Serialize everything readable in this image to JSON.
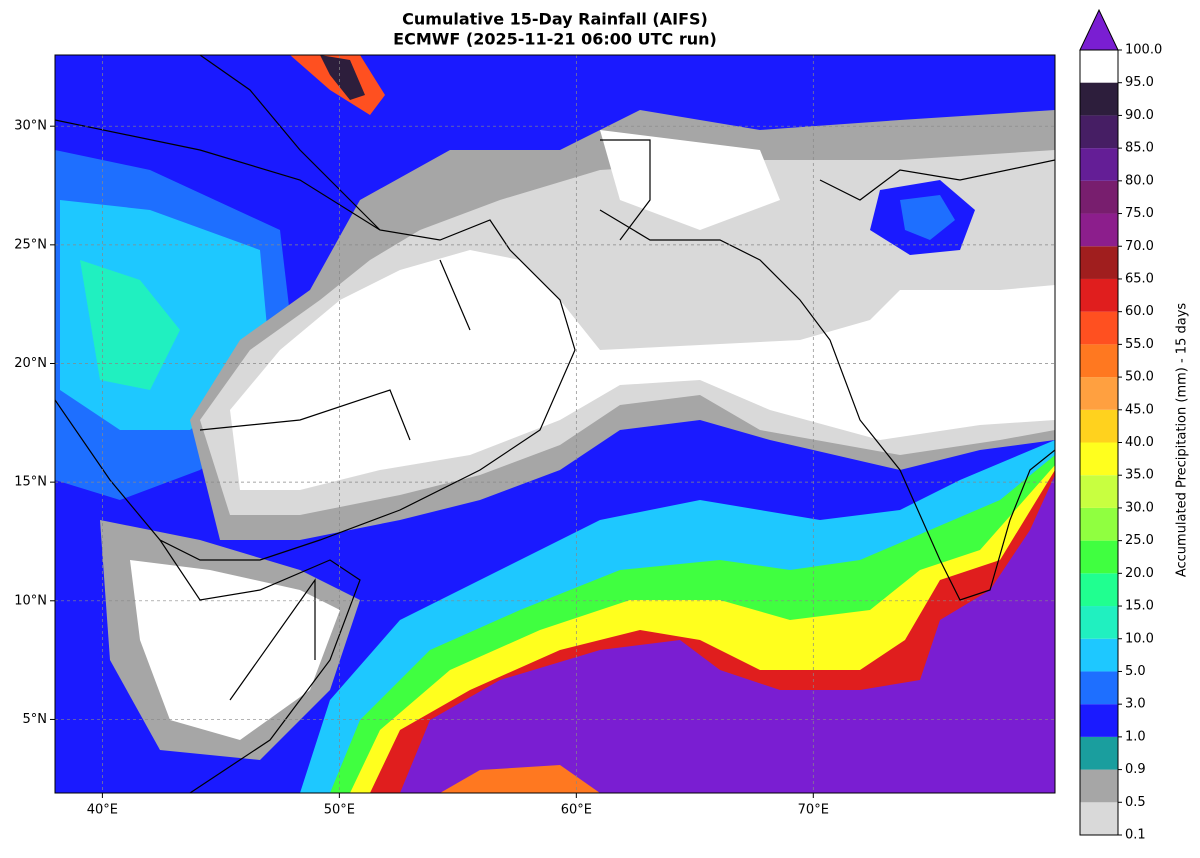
{
  "chart_data": {
    "type": "map",
    "title": "Cumulative 15-Day Rainfall (AIFS)",
    "subtitle": "ECMWF (2025-11-21 06:00 UTC run)",
    "xlim": [
      38,
      80.2
    ],
    "ylim": [
      1.9,
      33
    ],
    "xticks": [
      {
        "value": 40,
        "label": "40°E"
      },
      {
        "value": 50,
        "label": "50°E"
      },
      {
        "value": 60,
        "label": "60°E"
      },
      {
        "value": 70,
        "label": "70°E"
      }
    ],
    "yticks": [
      {
        "value": 5,
        "label": "5°N"
      },
      {
        "value": 10,
        "label": "10°N"
      },
      {
        "value": 15,
        "label": "15°N"
      },
      {
        "value": 20,
        "label": "20°N"
      },
      {
        "value": 25,
        "label": "25°N"
      },
      {
        "value": 30,
        "label": "30°N"
      }
    ],
    "grid": true,
    "colorbar": {
      "label": "Accumulated Precipitation (mm) - 15 days",
      "ticks": [
        {
          "value": 0.1,
          "label": "0.1"
        },
        {
          "value": 0.5,
          "label": "0.5"
        },
        {
          "value": 0.9,
          "label": "0.9"
        },
        {
          "value": 1,
          "label": "1.0"
        },
        {
          "value": 3,
          "label": "3.0"
        },
        {
          "value": 5,
          "label": "5.0"
        },
        {
          "value": 10,
          "label": "10.0"
        },
        {
          "value": 15,
          "label": "15.0"
        },
        {
          "value": 20,
          "label": "20.0"
        },
        {
          "value": 25,
          "label": "25.0"
        },
        {
          "value": 30,
          "label": "30.0"
        },
        {
          "value": 35,
          "label": "35.0"
        },
        {
          "value": 40,
          "label": "40.0"
        },
        {
          "value": 45,
          "label": "45.0"
        },
        {
          "value": 50,
          "label": "50.0"
        },
        {
          "value": 55,
          "label": "55.0"
        },
        {
          "value": 60,
          "label": "60.0"
        },
        {
          "value": 65,
          "label": "65.0"
        },
        {
          "value": 70,
          "label": "70.0"
        },
        {
          "value": 75,
          "label": "75.0"
        },
        {
          "value": 80,
          "label": "80.0"
        },
        {
          "value": 85,
          "label": "85.0"
        },
        {
          "value": 90,
          "label": "90.0"
        },
        {
          "value": 95,
          "label": "95.0"
        },
        {
          "value": 100,
          "label": "100.0"
        }
      ],
      "colors": [
        "#d9d9d9",
        "#a6a6a6",
        "#1a9e9e",
        "#1a1aff",
        "#1e6fff",
        "#1ec8ff",
        "#20f0c0",
        "#20ff90",
        "#40ff40",
        "#90ff40",
        "#c8ff40",
        "#ffff1e",
        "#ffd21e",
        "#ffa040",
        "#ff7820",
        "#ff5020",
        "#e01e1e",
        "#a01e1e",
        "#8c1e8c",
        "#781e6e",
        "#641e96",
        "#461e64",
        "#2d1e3c"
      ],
      "extend_color": "#7a1ed2"
    }
  }
}
